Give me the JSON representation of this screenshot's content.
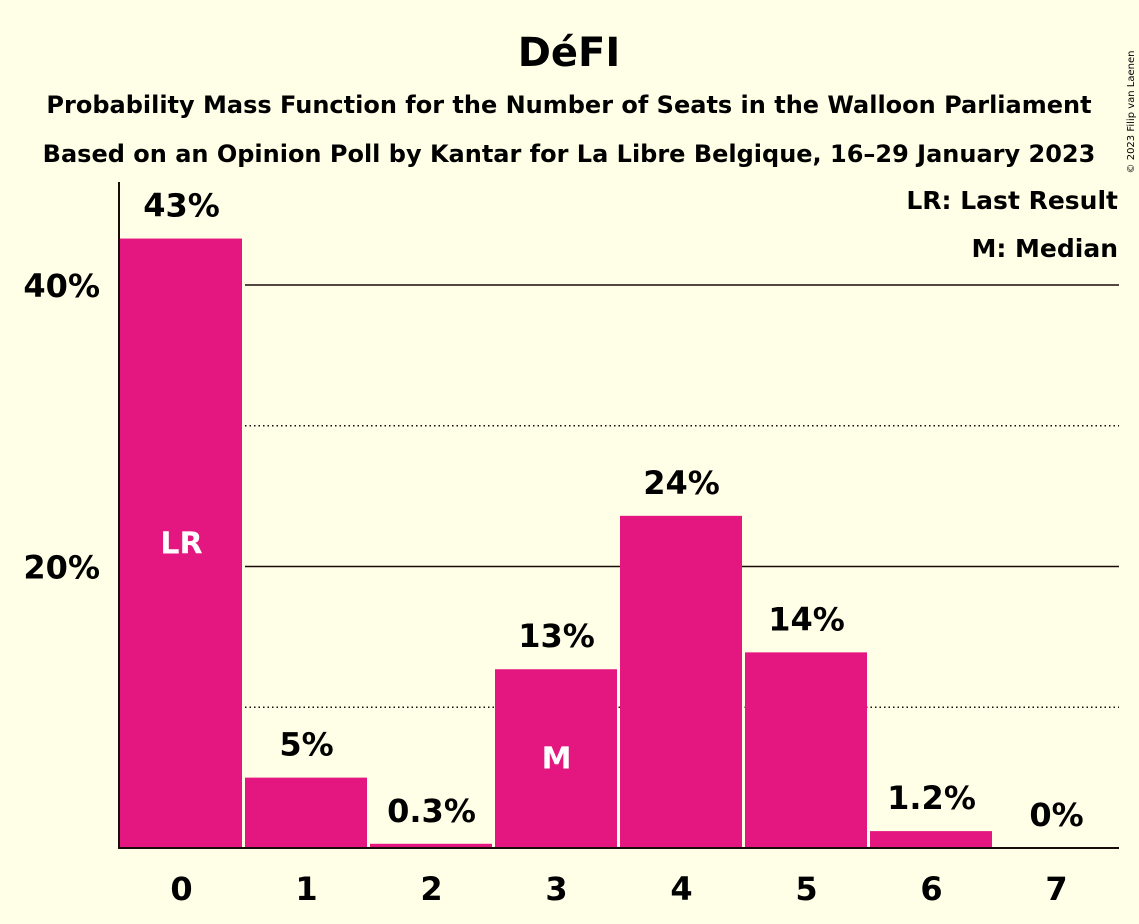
{
  "chart_data": {
    "type": "bar",
    "title": "DéFI",
    "subtitle_lines": [
      "Probability Mass Function for the Number of Seats in the Walloon Parliament",
      "Based on an Opinion Poll by Kantar for La Libre Belgique, 16–29 January 2023"
    ],
    "categories": [
      "0",
      "1",
      "2",
      "3",
      "4",
      "5",
      "6",
      "7"
    ],
    "values": [
      43.3,
      5.0,
      0.3,
      12.7,
      23.6,
      13.9,
      1.2,
      0.0
    ],
    "data_labels": [
      "43%",
      "5%",
      "0.3%",
      "13%",
      "24%",
      "14%",
      "1.2%",
      "0%"
    ],
    "in_bar_markers": [
      {
        "index": 0,
        "text": "LR"
      },
      {
        "index": 3,
        "text": "M"
      }
    ],
    "legend": [
      "LR: Last Result",
      "M: Median"
    ],
    "legend_position": "top-right",
    "y_ticks": [
      {
        "value": 20,
        "label": "20%"
      },
      {
        "value": 40,
        "label": "40%"
      }
    ],
    "minor_gridlines": [
      10,
      30
    ],
    "ylim": [
      0,
      47
    ],
    "grid": true,
    "bar_color": "#E3177F",
    "copyright": "© 2023 Filip van Laenen"
  }
}
